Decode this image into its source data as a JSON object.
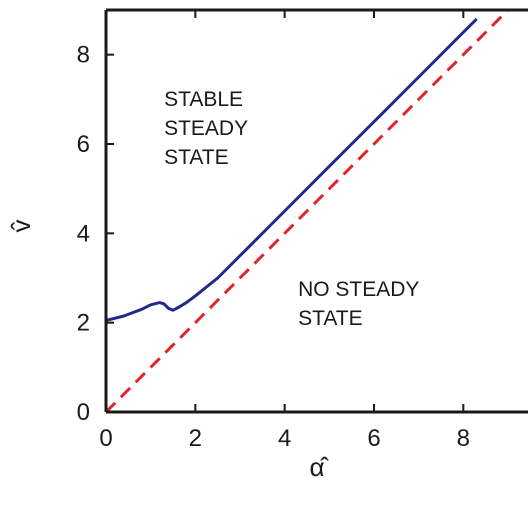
{
  "chart_data": {
    "type": "line",
    "xlabel": "α̂",
    "ylabel": "v̂",
    "xlim": [
      0,
      9
    ],
    "ylim": [
      0,
      9
    ],
    "x_ticks": [
      0,
      2,
      4,
      6,
      8
    ],
    "y_ticks": [
      0,
      2,
      4,
      6,
      8
    ],
    "x_tick_labels": [
      "0",
      "2",
      "4",
      "6",
      "8"
    ],
    "y_tick_labels": [
      "0",
      "2",
      "4",
      "6",
      "8"
    ],
    "grid": false,
    "series": [
      {
        "color": "#1f2a8a",
        "style": "solid",
        "x": [
          0,
          0.4,
          0.8,
          1.0,
          1.2,
          1.3,
          1.4,
          1.5,
          1.6,
          1.8,
          2.0,
          2.5,
          3.0,
          4.0,
          5.0,
          6.0,
          7.0,
          8.0,
          8.3
        ],
        "y": [
          2.05,
          2.15,
          2.3,
          2.4,
          2.45,
          2.42,
          2.32,
          2.28,
          2.33,
          2.45,
          2.6,
          3.0,
          3.5,
          4.5,
          5.5,
          6.5,
          7.5,
          8.5,
          8.8
        ]
      },
      {
        "color": "#e0262d",
        "style": "dashed",
        "x": [
          0,
          9
        ],
        "y": [
          0,
          9
        ]
      }
    ],
    "annotations": [
      {
        "lines": [
          "STABLE",
          "STEADY",
          "STATE"
        ],
        "x": 1.3,
        "y": 6.85
      },
      {
        "lines": [
          "NO STEADY",
          "STATE"
        ],
        "x": 4.3,
        "y": 2.6
      }
    ]
  }
}
